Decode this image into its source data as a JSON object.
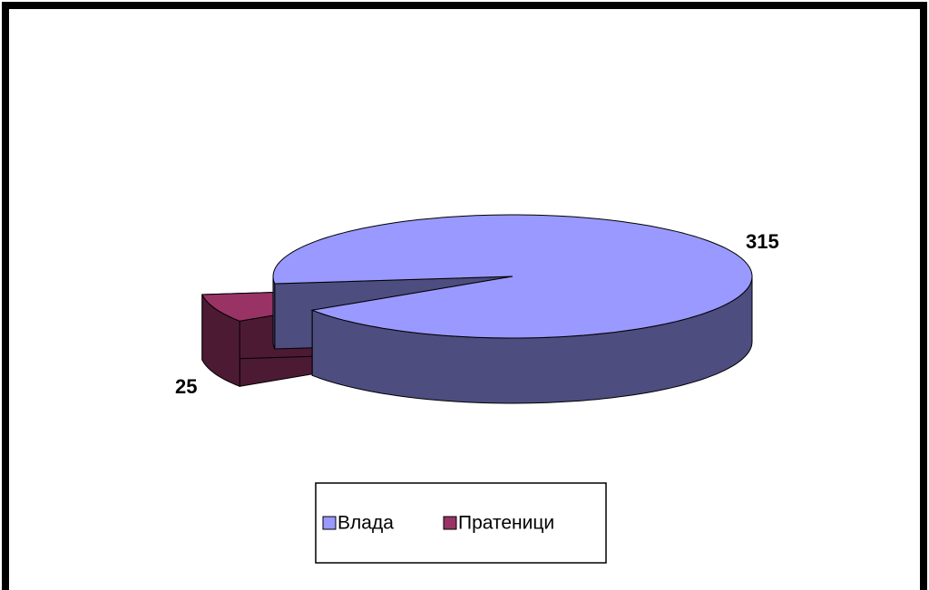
{
  "chart_data": {
    "type": "pie3d",
    "categories": [
      "Влада",
      "Пратеници"
    ],
    "values": [
      315,
      25
    ],
    "colors": [
      "#9999ff",
      "#993366"
    ],
    "legend": "bottom"
  }
}
